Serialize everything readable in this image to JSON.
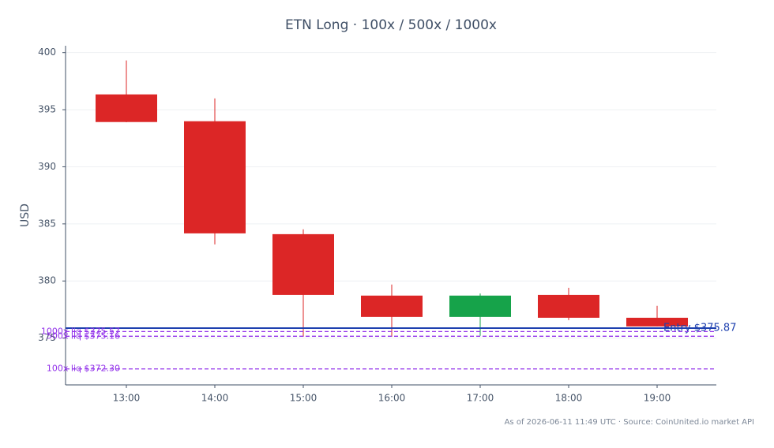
{
  "chart_data": {
    "type": "candlestick",
    "title": "ETN Long · 100x / 500x / 1000x",
    "y_label": "USD",
    "footer": "As of 2026-06-11 11:49 UTC · Source: CoinUnited.io market API",
    "categories": [
      "13:00",
      "14:00",
      "15:00",
      "16:00",
      "17:00",
      "18:00",
      "19:00"
    ],
    "open": [
      396.34,
      393.99,
      384.1,
      378.72,
      376.85,
      378.78,
      376.78
    ],
    "high": [
      399.31,
      395.99,
      384.52,
      379.69,
      378.9,
      379.4,
      377.82
    ],
    "low": [
      393.9,
      383.2,
      375.12,
      375.12,
      375.2,
      376.57,
      376.02
    ],
    "close": [
      393.92,
      384.17,
      378.78,
      376.85,
      378.72,
      376.78,
      376.02
    ],
    "up_color": "#16a34a",
    "down_color": "#dc2626",
    "ylim": [
      370.9,
      400.6
    ],
    "yticks": [
      375,
      380,
      385,
      390,
      395,
      400
    ],
    "grid": true,
    "hlines": [
      {
        "label": "Entry $375.87",
        "value": 375.87,
        "color": "#1e40af"
      },
      {
        "label": "1000x liq $375.57",
        "value": 375.57,
        "color": "#9333ea"
      },
      {
        "label": "500x liq $375.16",
        "value": 375.16,
        "color": "#9333ea"
      },
      {
        "label": "100x liq $372.30",
        "value": 372.3,
        "color": "#9333ea"
      }
    ]
  }
}
